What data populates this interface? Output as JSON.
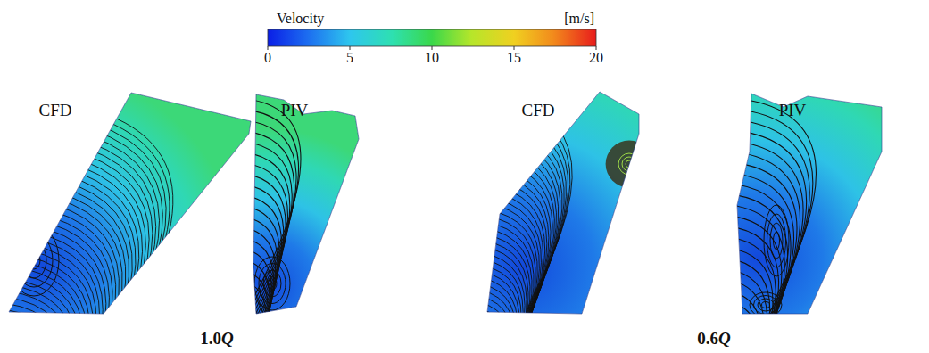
{
  "chart_data": {
    "type": "contour",
    "colorbar": {
      "label": "Velocity",
      "unit": "[m/s]",
      "range": [
        0,
        20
      ],
      "ticks": [
        0,
        5,
        10,
        15,
        20
      ]
    },
    "panels": [
      {
        "label": "CFD"
      },
      {
        "label": "PIV"
      },
      {
        "label": "CFD"
      },
      {
        "label": "PIV"
      }
    ],
    "groups": [
      {
        "label": "1.0Q"
      },
      {
        "label": "0.6Q"
      }
    ]
  }
}
